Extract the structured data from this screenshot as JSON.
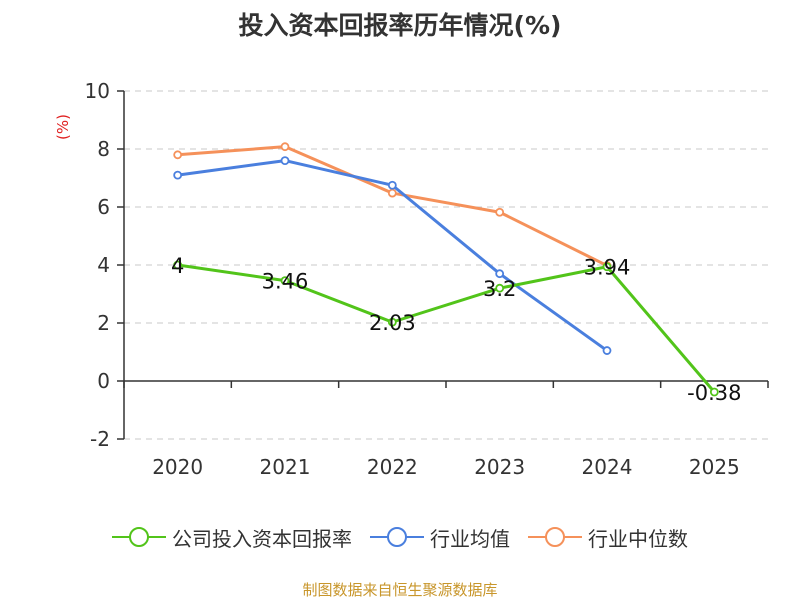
{
  "colors": {
    "company": "#52c41a",
    "industry_avg": "#4a7fde",
    "industry_median": "#f5915a",
    "ylabel": "#e02020",
    "source": "#c8962b"
  },
  "source_note": "制图数据来自恒生聚源数据库",
  "chart_data": {
    "type": "line",
    "title": "投入资本回报率历年情况(%)",
    "ylabel": "(%)",
    "xlabel": "",
    "categories": [
      "2020",
      "2021",
      "2022",
      "2023",
      "2024",
      "2025"
    ],
    "ylim": [
      -2,
      10
    ],
    "yticks": [
      -2,
      0,
      2,
      4,
      6,
      8,
      10
    ],
    "grid": true,
    "legend_position": "bottom",
    "series": [
      {
        "name": "公司投入资本回报率",
        "color": "#52c41a",
        "values": [
          4,
          3.46,
          2.03,
          3.2,
          3.94,
          -0.38
        ],
        "labels": [
          "4",
          "3.46",
          "2.03",
          "3.2",
          "3.94",
          "-0.38"
        ]
      },
      {
        "name": "行业均值",
        "color": "#4a7fde",
        "values": [
          7.1,
          7.6,
          6.75,
          3.7,
          1.05,
          null
        ]
      },
      {
        "name": "行业中位数",
        "color": "#f5915a",
        "values": [
          7.8,
          8.08,
          6.48,
          5.82,
          3.98,
          null
        ]
      }
    ]
  }
}
